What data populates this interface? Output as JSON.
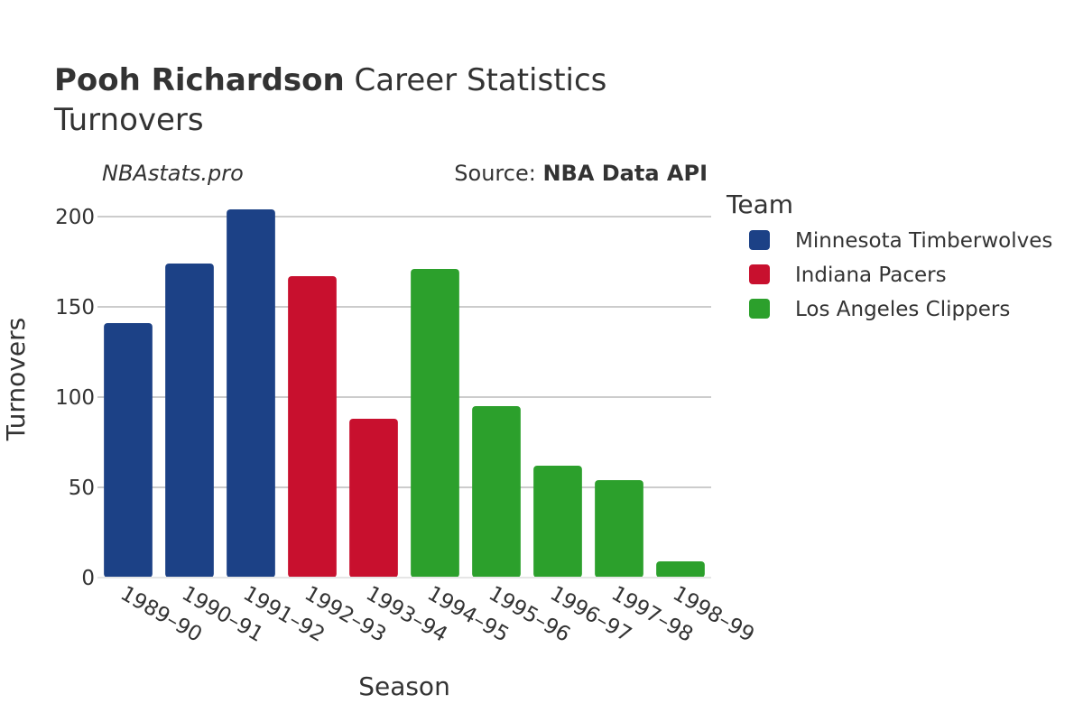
{
  "header": {
    "title_player": "Pooh Richardson",
    "title_rest": " Career Statistics",
    "subtitle": "Turnovers"
  },
  "watermark": "NBAstats.pro",
  "source": {
    "prefix": "Source: ",
    "name": "NBA Data API"
  },
  "legend": {
    "title": "Team",
    "items": [
      {
        "label": "Minnesota Timberwolves",
        "color": "#1c4186"
      },
      {
        "label": "Indiana Pacers",
        "color": "#c8102e"
      },
      {
        "label": "Los Angeles Clippers",
        "color": "#2ca02c"
      }
    ]
  },
  "chart_data": {
    "type": "bar",
    "title": "Pooh Richardson Career Statistics",
    "subtitle": "Turnovers",
    "xlabel": "Season",
    "ylabel": "Turnovers",
    "ylim": [
      0,
      210
    ],
    "yticks": [
      0,
      50,
      100,
      150,
      200
    ],
    "grid": true,
    "legend_position": "right",
    "categories": [
      "1989–90",
      "1990–91",
      "1991–92",
      "1992–93",
      "1993–94",
      "1994–95",
      "1995–96",
      "1996–97",
      "1997–98",
      "1998–99"
    ],
    "values": [
      141,
      174,
      204,
      167,
      88,
      171,
      95,
      62,
      54,
      9
    ],
    "teams": [
      "Minnesota Timberwolves",
      "Minnesota Timberwolves",
      "Minnesota Timberwolves",
      "Indiana Pacers",
      "Indiana Pacers",
      "Los Angeles Clippers",
      "Los Angeles Clippers",
      "Los Angeles Clippers",
      "Los Angeles Clippers",
      "Los Angeles Clippers"
    ]
  }
}
